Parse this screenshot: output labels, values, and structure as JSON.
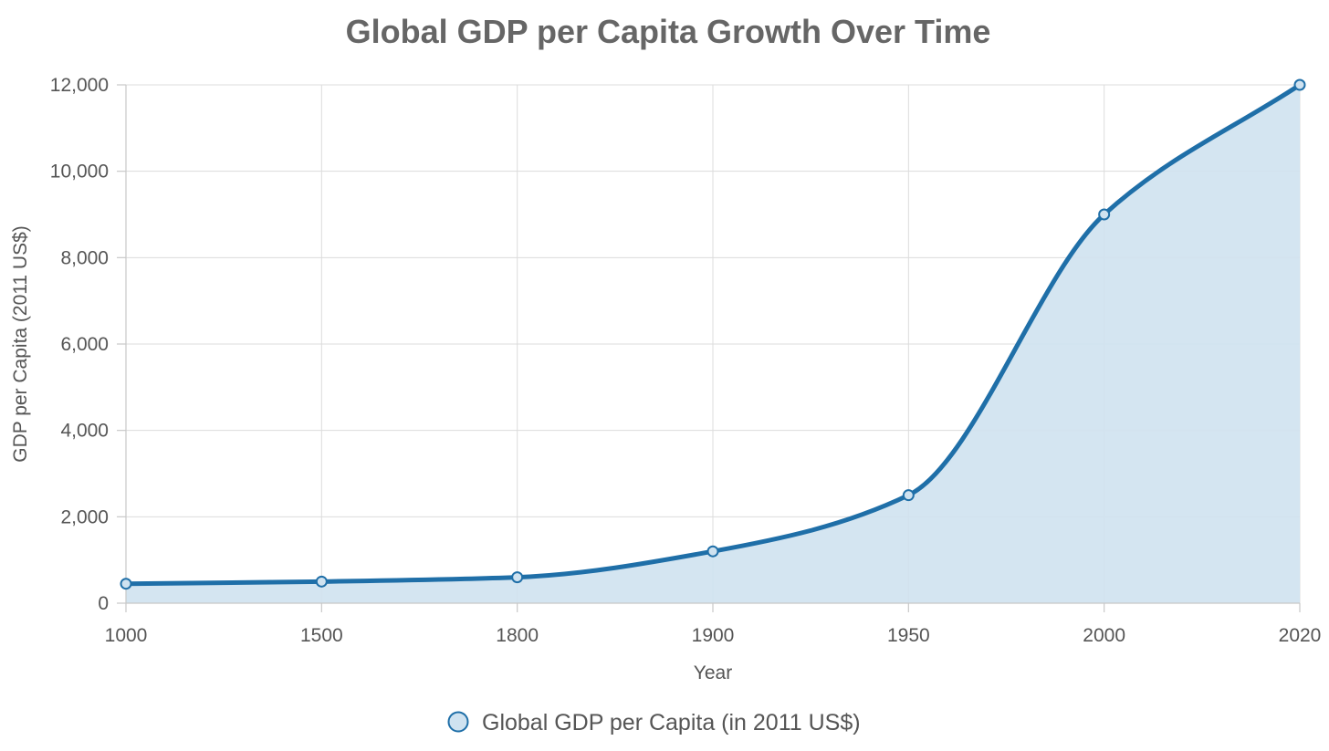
{
  "chart_data": {
    "type": "area",
    "title": "Global GDP per Capita Growth Over Time",
    "xlabel": "Year",
    "ylabel": "GDP per Capita (2011 US$)",
    "categories": [
      "1000",
      "1500",
      "1800",
      "1900",
      "1950",
      "2000",
      "2020"
    ],
    "series": [
      {
        "name": "Global GDP per Capita (in 2011 US$)",
        "values": [
          450,
          500,
          600,
          1200,
          2500,
          9000,
          12000
        ],
        "color": "#1f6fa8",
        "fill_color": "#cfe2f0"
      }
    ],
    "ylim": [
      0,
      12000
    ],
    "y_ticks": [
      0,
      2000,
      4000,
      6000,
      8000,
      10000,
      12000
    ],
    "y_tick_labels": [
      "0",
      "2,000",
      "4,000",
      "6,000",
      "8,000",
      "10,000",
      "12,000"
    ],
    "grid": true,
    "legend_position": "bottom-center"
  }
}
